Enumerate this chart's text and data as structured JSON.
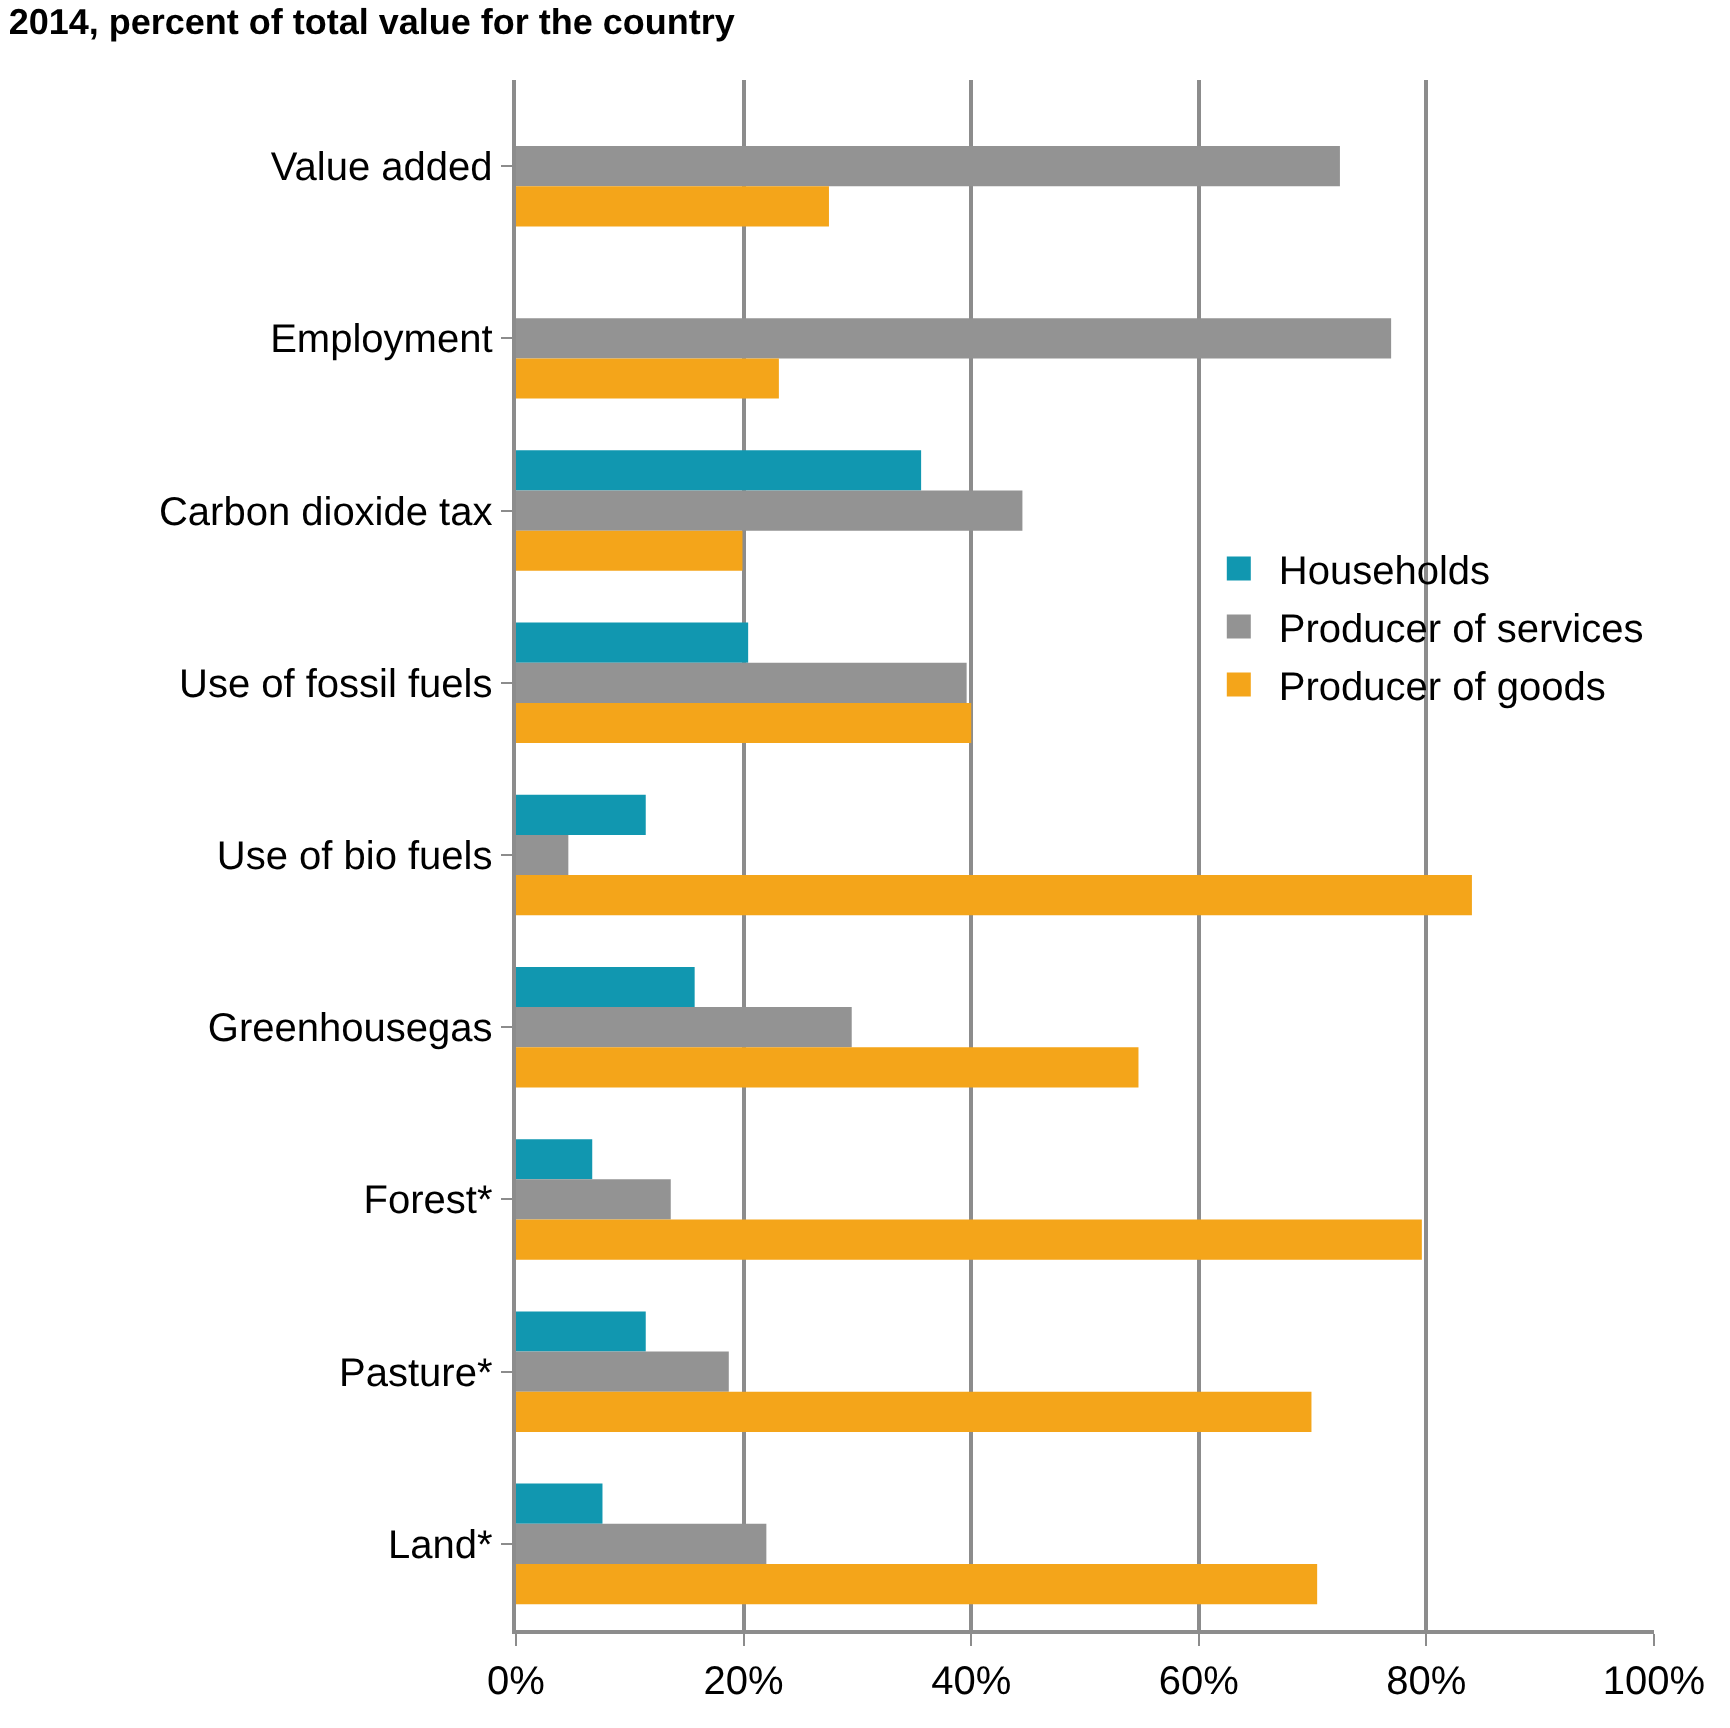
{
  "chart_data": {
    "type": "bar",
    "orientation": "horizontal",
    "title": "2014, percent of total value for the country",
    "categories": [
      "Value added",
      "Employment",
      "Carbon dioxide tax",
      "Use of fossil fuels",
      "Use of bio fuels",
      "Greenhousegas",
      "Forest*",
      "Pasture*",
      "Land*"
    ],
    "series": [
      {
        "name": "Households",
        "color": "#1197b0",
        "values": [
          null,
          null,
          35.6,
          20.4,
          11.4,
          15.7,
          6.7,
          11.4,
          7.6
        ]
      },
      {
        "name": "Producer of services",
        "color": "#939393",
        "values": [
          72.4,
          76.9,
          44.5,
          39.6,
          4.6,
          29.5,
          13.6,
          18.7,
          22.0
        ]
      },
      {
        "name": "Producer of goods",
        "color": "#f4a51a",
        "values": [
          27.5,
          23.1,
          19.9,
          40.0,
          84.0,
          54.7,
          79.6,
          69.9,
          70.4
        ]
      }
    ],
    "xlim": [
      0,
      100
    ],
    "xticks": [
      {
        "value": 0,
        "label": "0%"
      },
      {
        "value": 20,
        "label": "20%"
      },
      {
        "value": 40,
        "label": "40%"
      },
      {
        "value": 60,
        "label": "60%"
      },
      {
        "value": 80,
        "label": "80%"
      },
      {
        "value": 100,
        "label": "100%"
      }
    ],
    "grid": "x",
    "legend": "right"
  }
}
